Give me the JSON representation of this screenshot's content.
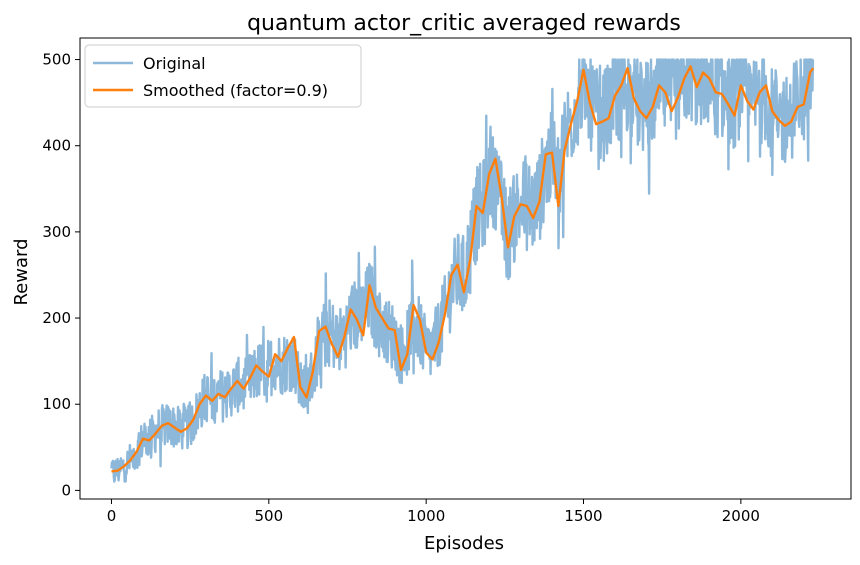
{
  "chart_data": {
    "type": "line",
    "title": "quantum actor_critic averaged rewards",
    "xlabel": "Episodes",
    "ylabel": "Reward",
    "xlim": [
      -100,
      2350
    ],
    "ylim": [
      -10,
      525
    ],
    "xticks": [
      0,
      500,
      1000,
      1500,
      2000
    ],
    "yticks": [
      0,
      100,
      200,
      300,
      400,
      500
    ],
    "grid": false,
    "legend_position": "upper-left",
    "legend": [
      "Original",
      "Smoothed (factor=0.9)"
    ],
    "series": [
      {
        "name": "Original",
        "color": "#8db8d9",
        "noise": "high-frequency episode rewards, spread roughly ±40 around the smoothed curve, capped at 500",
        "points": [
          [
            0,
            18
          ],
          [
            50,
            30
          ],
          [
            100,
            58
          ],
          [
            150,
            72
          ],
          [
            200,
            75
          ],
          [
            250,
            72
          ],
          [
            300,
            108
          ],
          [
            350,
            110
          ],
          [
            400,
            118
          ],
          [
            450,
            125
          ],
          [
            500,
            150
          ],
          [
            550,
            140
          ],
          [
            600,
            115
          ],
          [
            650,
            140
          ],
          [
            700,
            195
          ],
          [
            750,
            180
          ],
          [
            800,
            225
          ],
          [
            850,
            190
          ],
          [
            900,
            170
          ],
          [
            950,
            185
          ],
          [
            1000,
            160
          ],
          [
            1050,
            200
          ],
          [
            1100,
            240
          ],
          [
            1150,
            300
          ],
          [
            1200,
            355
          ],
          [
            1250,
            300
          ],
          [
            1300,
            330
          ],
          [
            1350,
            340
          ],
          [
            1400,
            380
          ],
          [
            1450,
            430
          ],
          [
            1500,
            460
          ],
          [
            1550,
            440
          ],
          [
            1600,
            455
          ],
          [
            1650,
            450
          ],
          [
            1700,
            455
          ],
          [
            1750,
            465
          ],
          [
            1800,
            470
          ],
          [
            1850,
            475
          ],
          [
            1900,
            470
          ],
          [
            1950,
            460
          ],
          [
            2000,
            465
          ],
          [
            2050,
            455
          ],
          [
            2100,
            430
          ],
          [
            2150,
            440
          ],
          [
            2200,
            470
          ],
          [
            2230,
            490
          ]
        ]
      },
      {
        "name": "Smoothed (factor=0.9)",
        "color": "#ff7f0e",
        "points": [
          [
            0,
            22
          ],
          [
            20,
            23
          ],
          [
            40,
            28
          ],
          [
            60,
            35
          ],
          [
            80,
            45
          ],
          [
            100,
            60
          ],
          [
            120,
            58
          ],
          [
            140,
            66
          ],
          [
            160,
            75
          ],
          [
            180,
            78
          ],
          [
            200,
            73
          ],
          [
            220,
            68
          ],
          [
            240,
            72
          ],
          [
            260,
            82
          ],
          [
            280,
            100
          ],
          [
            300,
            110
          ],
          [
            320,
            104
          ],
          [
            340,
            112
          ],
          [
            360,
            108
          ],
          [
            380,
            118
          ],
          [
            400,
            127
          ],
          [
            420,
            118
          ],
          [
            440,
            130
          ],
          [
            460,
            145
          ],
          [
            480,
            138
          ],
          [
            500,
            132
          ],
          [
            520,
            158
          ],
          [
            540,
            150
          ],
          [
            560,
            165
          ],
          [
            580,
            178
          ],
          [
            600,
            120
          ],
          [
            620,
            108
          ],
          [
            640,
            138
          ],
          [
            660,
            185
          ],
          [
            680,
            190
          ],
          [
            700,
            170
          ],
          [
            720,
            155
          ],
          [
            740,
            178
          ],
          [
            760,
            210
          ],
          [
            780,
            198
          ],
          [
            800,
            180
          ],
          [
            820,
            238
          ],
          [
            840,
            212
          ],
          [
            860,
            200
          ],
          [
            880,
            188
          ],
          [
            900,
            186
          ],
          [
            920,
            140
          ],
          [
            940,
            158
          ],
          [
            960,
            215
          ],
          [
            980,
            198
          ],
          [
            1000,
            160
          ],
          [
            1020,
            152
          ],
          [
            1040,
            172
          ],
          [
            1060,
            205
          ],
          [
            1080,
            250
          ],
          [
            1100,
            262
          ],
          [
            1120,
            230
          ],
          [
            1140,
            268
          ],
          [
            1160,
            330
          ],
          [
            1180,
            322
          ],
          [
            1200,
            367
          ],
          [
            1220,
            385
          ],
          [
            1240,
            340
          ],
          [
            1260,
            282
          ],
          [
            1280,
            318
          ],
          [
            1300,
            332
          ],
          [
            1320,
            330
          ],
          [
            1340,
            316
          ],
          [
            1360,
            335
          ],
          [
            1380,
            390
          ],
          [
            1400,
            392
          ],
          [
            1420,
            330
          ],
          [
            1440,
            395
          ],
          [
            1460,
            425
          ],
          [
            1480,
            452
          ],
          [
            1500,
            488
          ],
          [
            1520,
            450
          ],
          [
            1540,
            425
          ],
          [
            1560,
            428
          ],
          [
            1580,
            432
          ],
          [
            1600,
            458
          ],
          [
            1620,
            470
          ],
          [
            1640,
            490
          ],
          [
            1660,
            455
          ],
          [
            1680,
            440
          ],
          [
            1700,
            432
          ],
          [
            1720,
            445
          ],
          [
            1740,
            470
          ],
          [
            1760,
            462
          ],
          [
            1780,
            440
          ],
          [
            1800,
            456
          ],
          [
            1820,
            478
          ],
          [
            1840,
            492
          ],
          [
            1860,
            468
          ],
          [
            1880,
            485
          ],
          [
            1900,
            478
          ],
          [
            1920,
            462
          ],
          [
            1940,
            460
          ],
          [
            1960,
            448
          ],
          [
            1980,
            435
          ],
          [
            2000,
            470
          ],
          [
            2020,
            452
          ],
          [
            2040,
            442
          ],
          [
            2060,
            462
          ],
          [
            2080,
            470
          ],
          [
            2100,
            440
          ],
          [
            2120,
            430
          ],
          [
            2140,
            423
          ],
          [
            2160,
            428
          ],
          [
            2180,
            445
          ],
          [
            2200,
            448
          ],
          [
            2220,
            485
          ],
          [
            2230,
            490
          ]
        ]
      }
    ]
  }
}
